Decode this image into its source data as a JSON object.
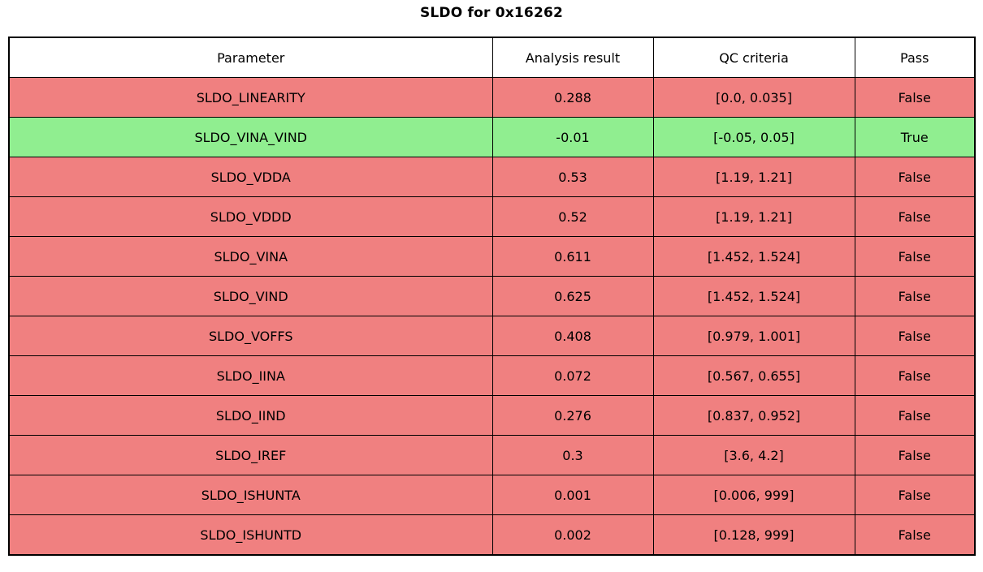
{
  "title": "SLDO for 0x16262",
  "colors": {
    "fail_row": "#f08080",
    "pass_row": "#90ee90",
    "border": "#000000",
    "header_bg": "#ffffff",
    "text": "#000000"
  },
  "chart_data": {
    "type": "table",
    "title": "SLDO for 0x16262",
    "columns": [
      "Parameter",
      "Analysis result",
      "QC criteria",
      "Pass"
    ],
    "rows": [
      {
        "parameter": "SLDO_LINEARITY",
        "result": "0.288",
        "criteria": "[0.0, 0.035]",
        "pass": "False"
      },
      {
        "parameter": "SLDO_VINA_VIND",
        "result": "-0.01",
        "criteria": "[-0.05, 0.05]",
        "pass": "True"
      },
      {
        "parameter": "SLDO_VDDA",
        "result": "0.53",
        "criteria": "[1.19, 1.21]",
        "pass": "False"
      },
      {
        "parameter": "SLDO_VDDD",
        "result": "0.52",
        "criteria": "[1.19, 1.21]",
        "pass": "False"
      },
      {
        "parameter": "SLDO_VINA",
        "result": "0.611",
        "criteria": "[1.452, 1.524]",
        "pass": "False"
      },
      {
        "parameter": "SLDO_VIND",
        "result": "0.625",
        "criteria": "[1.452, 1.524]",
        "pass": "False"
      },
      {
        "parameter": "SLDO_VOFFS",
        "result": "0.408",
        "criteria": "[0.979, 1.001]",
        "pass": "False"
      },
      {
        "parameter": "SLDO_IINA",
        "result": "0.072",
        "criteria": "[0.567, 0.655]",
        "pass": "False"
      },
      {
        "parameter": "SLDO_IIND",
        "result": "0.276",
        "criteria": "[0.837, 0.952]",
        "pass": "False"
      },
      {
        "parameter": "SLDO_IREF",
        "result": "0.3",
        "criteria": "[3.6, 4.2]",
        "pass": "False"
      },
      {
        "parameter": "SLDO_ISHUNTA",
        "result": "0.001",
        "criteria": "[0.006, 999]",
        "pass": "False"
      },
      {
        "parameter": "SLDO_ISHUNTD",
        "result": "0.002",
        "criteria": "[0.128, 999]",
        "pass": "False"
      }
    ]
  }
}
